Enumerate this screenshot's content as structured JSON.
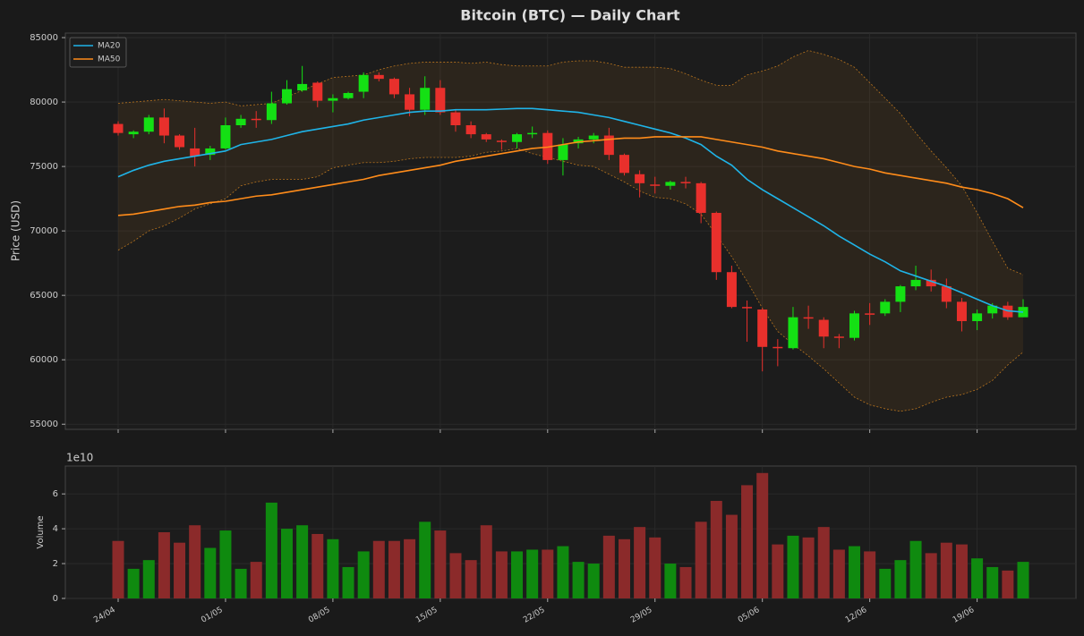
{
  "chart_data": [
    {
      "type": "candlestick",
      "title": "Bitcoin (BTC) — Daily Chart",
      "y_label": "Price (USD)",
      "open": [
        78300,
        77500,
        77700,
        78800,
        77400,
        76400,
        75900,
        76400,
        78200,
        78700,
        78600,
        79900,
        80900,
        81500,
        80100,
        80300,
        80800,
        82100,
        81800,
        80600,
        79400,
        81100,
        79200,
        78200,
        77500,
        77000,
        76900,
        77500,
        77600,
        75500,
        76800,
        77100,
        77400,
        75900,
        74400,
        73600,
        73500,
        73800,
        73700,
        71400,
        66800,
        64100,
        63900,
        61000,
        60900,
        63300,
        63100,
        61800,
        61700,
        63600,
        63600,
        64500,
        65700,
        66200,
        65700,
        64500,
        63000,
        63600,
        64200,
        63300
      ],
      "high": [
        78500,
        77800,
        79000,
        79500,
        77500,
        78000,
        76600,
        78800,
        79000,
        79300,
        80800,
        81700,
        82800,
        81600,
        80600,
        80800,
        82300,
        82300,
        81900,
        81100,
        82000,
        81700,
        79400,
        78500,
        77600,
        77100,
        77600,
        78100,
        77800,
        77200,
        77300,
        77600,
        78000,
        76000,
        74700,
        74200,
        73900,
        74200,
        73800,
        71500,
        67300,
        64600,
        64000,
        61600,
        64100,
        64200,
        63300,
        62000,
        63800,
        64400,
        64700,
        65800,
        67300,
        67000,
        66300,
        64800,
        63900,
        64400,
        64500,
        64700
      ],
      "low": [
        77400,
        77200,
        77500,
        76800,
        76300,
        75000,
        75500,
        76300,
        78000,
        78000,
        78300,
        79800,
        80800,
        79600,
        79200,
        80200,
        80300,
        81600,
        80300,
        78900,
        79000,
        79000,
        77700,
        77200,
        76900,
        76300,
        76400,
        77200,
        75200,
        74300,
        76400,
        76800,
        75500,
        74300,
        72600,
        72900,
        73200,
        73300,
        70600,
        66200,
        64000,
        61400,
        59100,
        59500,
        60800,
        62400,
        60900,
        60900,
        61500,
        62700,
        63400,
        63700,
        65400,
        65300,
        64000,
        62200,
        62300,
        63200,
        63100,
        63300
      ],
      "close": [
        77600,
        77700,
        78800,
        77400,
        76500,
        75800,
        76400,
        78200,
        78700,
        78600,
        79900,
        81000,
        81400,
        80100,
        80300,
        80700,
        82100,
        81800,
        80600,
        79400,
        81100,
        79200,
        78200,
        77500,
        77100,
        76900,
        77500,
        77600,
        75500,
        76700,
        77100,
        77400,
        75900,
        74500,
        73700,
        73500,
        73800,
        73700,
        71400,
        66800,
        64100,
        64000,
        61000,
        60900,
        63300,
        63200,
        61800,
        61700,
        63600,
        63500,
        64500,
        65700,
        66200,
        65700,
        64500,
        63000,
        63600,
        64200,
        63300,
        64100
      ],
      "up_color": "#14e014",
      "down_color": "#e8302c",
      "series": [
        {
          "name": "MA20",
          "color": "#1fb4e8",
          "values": [
            74200,
            74700,
            75100,
            75400,
            75600,
            75800,
            76000,
            76200,
            76700,
            76900,
            77100,
            77400,
            77700,
            77900,
            78100,
            78300,
            78600,
            78800,
            79000,
            79200,
            79300,
            79300,
            79400,
            79400,
            79400,
            79450,
            79500,
            79500,
            79400,
            79300,
            79200,
            79000,
            78800,
            78500,
            78200,
            77900,
            77600,
            77200,
            76700,
            75800,
            75100,
            74000,
            73200,
            72500,
            71800,
            71100,
            70400,
            69600,
            68900,
            68200,
            67600,
            66900,
            66500,
            66100,
            65700,
            65200,
            64700,
            64200,
            63800,
            63700
          ]
        },
        {
          "name": "MA50",
          "color": "#ff8c1a",
          "values": [
            71200,
            71300,
            71500,
            71700,
            71900,
            72000,
            72200,
            72300,
            72500,
            72700,
            72800,
            73000,
            73200,
            73400,
            73600,
            73800,
            74000,
            74300,
            74500,
            74700,
            74900,
            75100,
            75400,
            75600,
            75800,
            76000,
            76200,
            76400,
            76500,
            76700,
            76900,
            77000,
            77100,
            77200,
            77200,
            77300,
            77300,
            77300,
            77300,
            77100,
            76900,
            76700,
            76500,
            76200,
            76000,
            75800,
            75600,
            75300,
            75000,
            74800,
            74500,
            74300,
            74100,
            73900,
            73700,
            73400,
            73200,
            72900,
            72500,
            71800
          ]
        }
      ],
      "band": {
        "color": "#b8741e",
        "upper": [
          79900,
          80000,
          80100,
          80200,
          80100,
          80000,
          79900,
          80000,
          79700,
          79800,
          79900,
          80400,
          80900,
          81400,
          81900,
          82000,
          82100,
          82500,
          82800,
          83000,
          83100,
          83100,
          83100,
          83000,
          83100,
          82900,
          82800,
          82800,
          82800,
          83100,
          83200,
          83200,
          83000,
          82700,
          82700,
          82700,
          82600,
          82200,
          81700,
          81300,
          81300,
          82100,
          82400,
          82800,
          83500,
          84000,
          83700,
          83300,
          82700,
          81500,
          80300,
          79100,
          77600,
          76200,
          74900,
          73500,
          71400,
          69200,
          67100,
          66600
        ],
        "lower": [
          68500,
          69200,
          70000,
          70400,
          71000,
          71700,
          72100,
          72500,
          73500,
          73800,
          74000,
          74000,
          74000,
          74200,
          74900,
          75100,
          75300,
          75300,
          75400,
          75600,
          75700,
          75700,
          75700,
          75800,
          76100,
          76200,
          76400,
          76000,
          75700,
          75400,
          75100,
          75000,
          74400,
          73800,
          73100,
          72600,
          72500,
          72100,
          71300,
          69700,
          68000,
          66100,
          64000,
          62200,
          61200,
          60300,
          59300,
          58200,
          57100,
          56500,
          56200,
          56000,
          56200,
          56700,
          57100,
          57300,
          57700,
          58400,
          59600,
          60600
        ]
      },
      "ylim": [
        54600,
        85350
      ],
      "yticks": [
        55000,
        60000,
        65000,
        70000,
        75000,
        80000,
        85000
      ],
      "grid": true,
      "legend": "upper left"
    },
    {
      "type": "bar",
      "y_label": "Volume",
      "offset_text": "1e10",
      "categories": [
        "24/04",
        null,
        null,
        null,
        null,
        null,
        null,
        "01/05",
        null,
        null,
        null,
        null,
        null,
        null,
        "08/05",
        null,
        null,
        null,
        null,
        null,
        null,
        "15/05",
        null,
        null,
        null,
        null,
        null,
        null,
        "22/05",
        null,
        null,
        null,
        null,
        null,
        null,
        "29/05",
        null,
        null,
        null,
        null,
        null,
        null,
        "05/06",
        null,
        null,
        null,
        null,
        null,
        null,
        "12/06",
        null,
        null,
        null,
        null,
        null,
        null,
        "19/06",
        null,
        null,
        null
      ],
      "values": [
        3.3,
        1.7,
        2.2,
        3.8,
        3.2,
        4.2,
        2.9,
        3.9,
        1.7,
        2.1,
        5.5,
        4.0,
        4.2,
        3.7,
        3.4,
        1.8,
        2.7,
        3.3,
        3.3,
        3.4,
        4.4,
        3.9,
        2.6,
        2.2,
        4.2,
        2.7,
        2.7,
        2.8,
        2.8,
        3.0,
        2.1,
        2.0,
        3.6,
        3.4,
        4.1,
        3.5,
        2.0,
        1.8,
        4.4,
        5.6,
        4.8,
        6.5,
        7.2,
        3.1,
        3.6,
        3.5,
        4.1,
        2.8,
        3.0,
        2.7,
        1.7,
        2.2,
        3.3,
        2.6,
        3.2,
        3.1,
        2.3,
        1.8,
        1.6,
        2.1
      ],
      "up_color": "#0f8a0f",
      "down_color": "#8b2a2a",
      "ylim": [
        0,
        7.6
      ],
      "yticks": [
        0,
        2,
        4,
        6
      ],
      "grid": true
    }
  ]
}
